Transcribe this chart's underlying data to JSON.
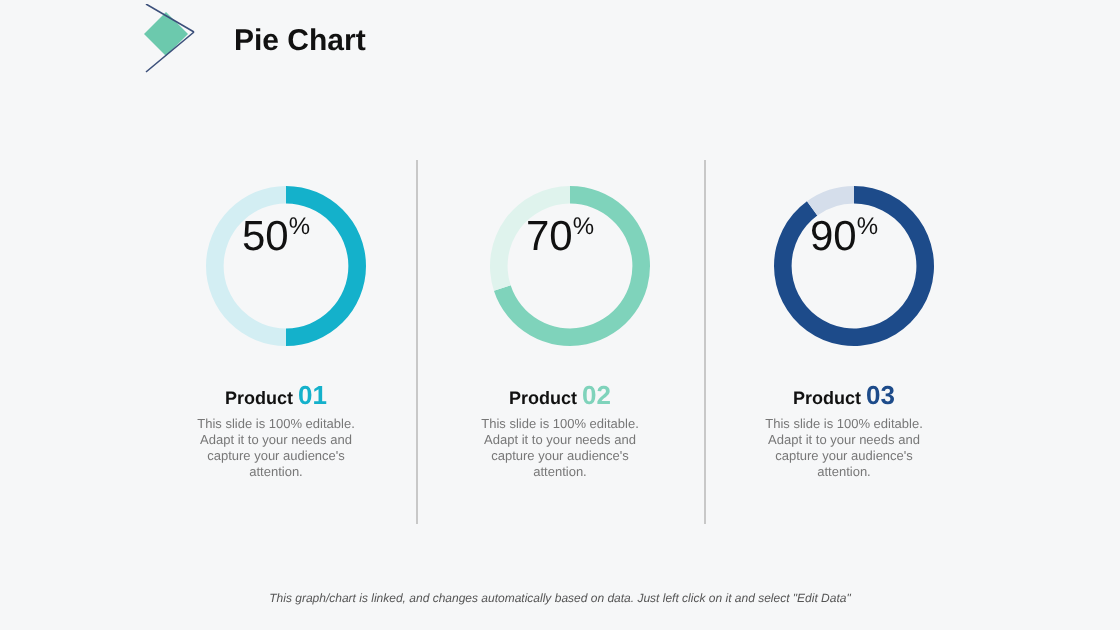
{
  "chart_data": [
    {
      "type": "donut",
      "title": "Product 01",
      "subtitle": "This slide is 100% editable. Adapt it to your needs and capture your audience's attention.",
      "categories": [
        null,
        null
      ],
      "values": [
        50,
        50
      ],
      "colors": [
        "#14b1cb",
        "#d3eef3"
      ],
      "value_labels": [
        "50$^{%}$",
        null
      ],
      "annotations": [
        "Pie Chart",
        "This graph/chart is linked, and changes automatically based on data. Just left click on it and select \"Edit Data\""
      ]
    },
    {
      "type": "donut",
      "title": "Product 02",
      "subtitle": "This slide is 100% editable. Adapt it to your needs and capture your audience's attention.",
      "categories": [
        null,
        null
      ],
      "values": [
        70,
        30
      ],
      "colors": [
        "#7fd3bb",
        "#dff3ed"
      ],
      "value_labels": [
        "70$^{%}$",
        null
      ]
    },
    {
      "type": "donut",
      "title": "Product 03",
      "subtitle": "This slide is 100% editable. Adapt it to your needs and capture your audience's attention.",
      "categories": [
        null,
        null
      ],
      "values": [
        90,
        10
      ],
      "colors": [
        "#1d4b8a",
        "#d5deeb"
      ],
      "value_labels": [
        "90$^{%}$",
        null
      ]
    }
  ]
}
